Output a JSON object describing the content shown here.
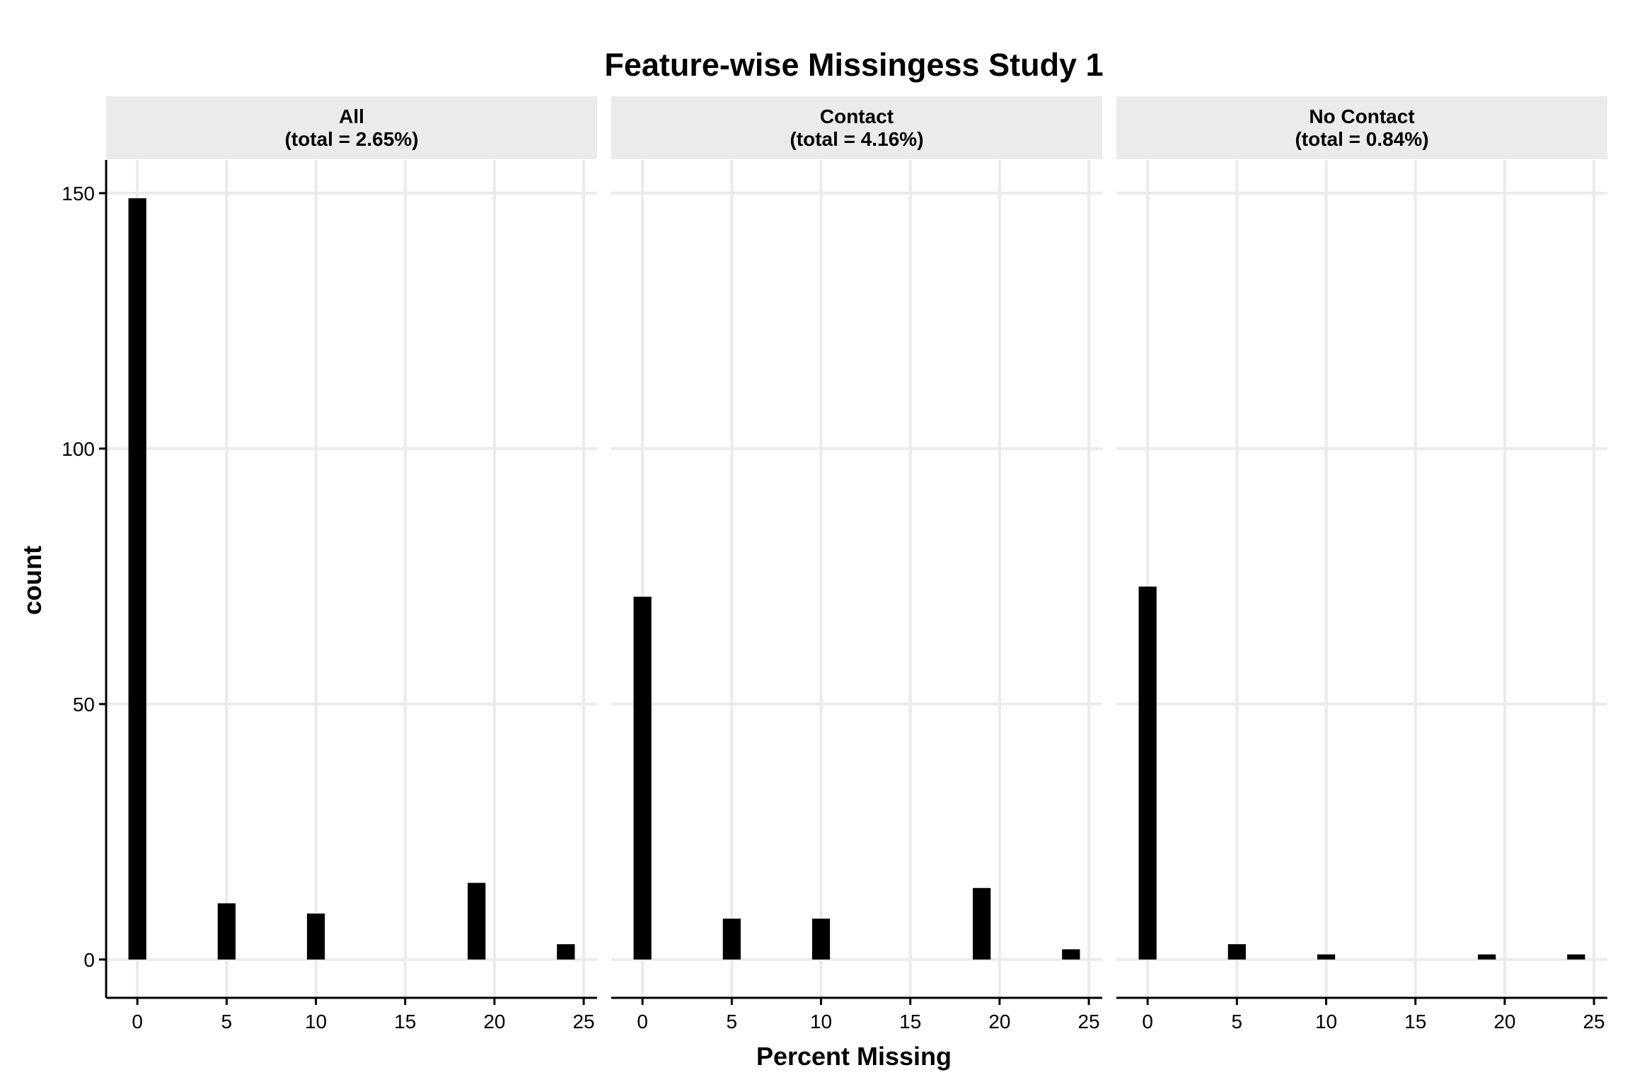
{
  "chart_data": {
    "type": "bar",
    "title": "Feature-wise Missingess Study 1",
    "xlabel": "Percent Missing",
    "ylabel": "count",
    "x_ticks": [
      0,
      5,
      10,
      15,
      20,
      25
    ],
    "y_ticks": [
      0,
      50,
      100,
      150
    ],
    "xlim": [
      -1.75,
      25.75
    ],
    "ylim": [
      -7.5,
      156.5
    ],
    "grid": true,
    "bar_color": "#000000",
    "panel_strip_color": "#EBEBEB",
    "grid_color": "#EBEBEB",
    "panels": [
      {
        "label": "All",
        "sublabel": "(total = 2.65%)",
        "bars": [
          {
            "x": 0,
            "value": 149
          },
          {
            "x": 5,
            "value": 11
          },
          {
            "x": 10,
            "value": 9
          },
          {
            "x": 19,
            "value": 15
          },
          {
            "x": 24,
            "value": 3
          }
        ]
      },
      {
        "label": "Contact",
        "sublabel": "(total = 4.16%)",
        "bars": [
          {
            "x": 0,
            "value": 71
          },
          {
            "x": 5,
            "value": 8
          },
          {
            "x": 10,
            "value": 8
          },
          {
            "x": 19,
            "value": 14
          },
          {
            "x": 24,
            "value": 2
          }
        ]
      },
      {
        "label": "No Contact",
        "sublabel": "(total = 0.84%)",
        "bars": [
          {
            "x": 0,
            "value": 73
          },
          {
            "x": 5,
            "value": 3
          },
          {
            "x": 10,
            "value": 1
          },
          {
            "x": 19,
            "value": 1
          },
          {
            "x": 24,
            "value": 1
          }
        ]
      }
    ]
  }
}
